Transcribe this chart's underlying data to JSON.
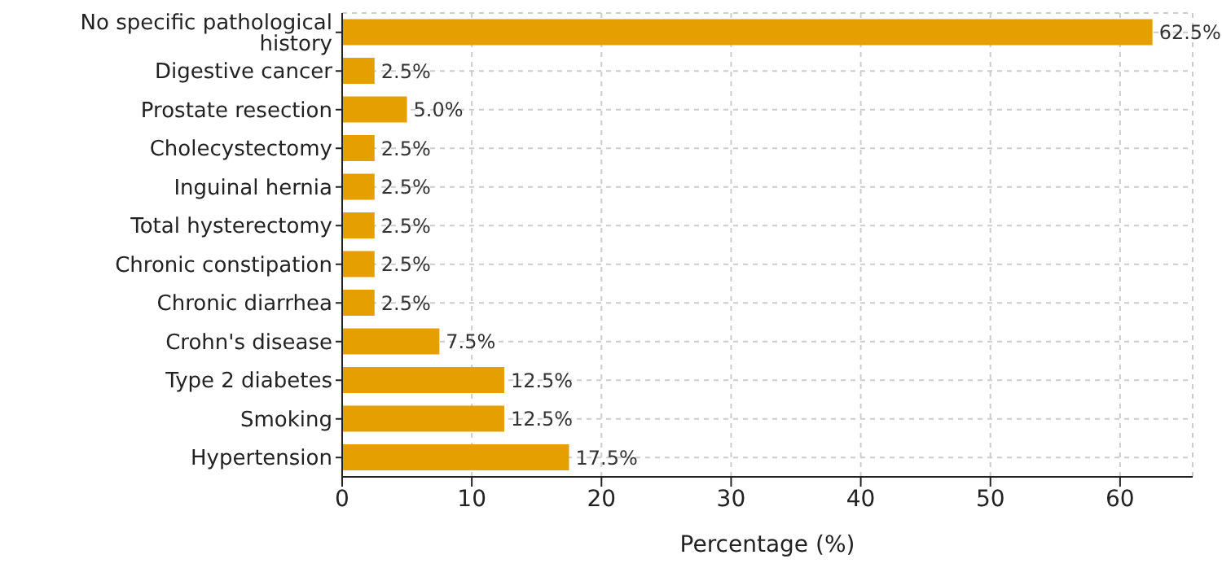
{
  "chart_data": {
    "type": "bar",
    "orientation": "horizontal",
    "categories": [
      "No specific pathological history",
      "Digestive cancer",
      "Prostate resection",
      "Cholecystectomy",
      "Inguinal hernia",
      "Total hysterectomy",
      "Chronic constipation",
      "Chronic diarrhea",
      "Crohn's disease",
      "Type 2 diabetes",
      "Smoking",
      "Hypertension"
    ],
    "values": [
      62.5,
      2.5,
      5.0,
      2.5,
      2.5,
      2.5,
      2.5,
      2.5,
      7.5,
      12.5,
      12.5,
      17.5
    ],
    "value_labels": [
      "62.5%",
      "2.5%",
      "5.0%",
      "2.5%",
      "2.5%",
      "2.5%",
      "2.5%",
      "2.5%",
      "7.5%",
      "12.5%",
      "12.5%",
      "17.5%"
    ],
    "color": "#e69f00",
    "xlabel": "Percentage (%)",
    "xlim": [
      0,
      65.6
    ],
    "xticks": [
      0,
      10,
      20,
      30,
      40,
      50,
      60
    ],
    "grid": true
  }
}
